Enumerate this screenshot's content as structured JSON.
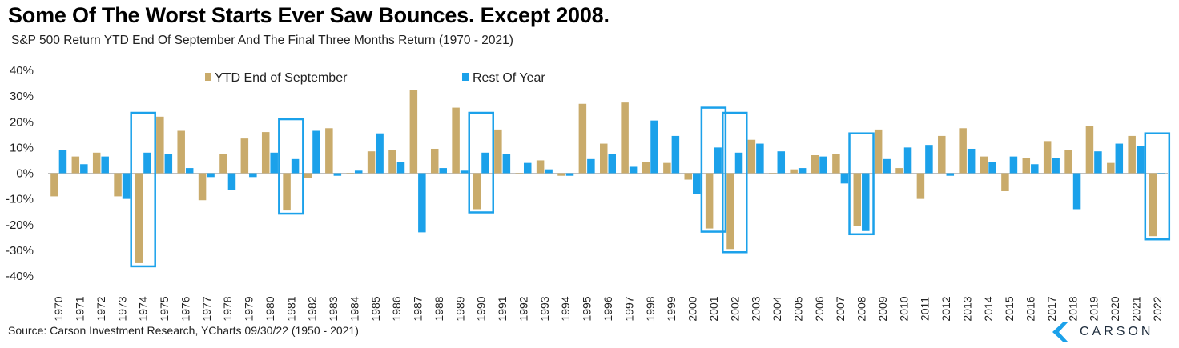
{
  "title": "Some Of The Worst Starts Ever Saw Bounces. Except 2008.",
  "subtitle": "S&P 500 Return YTD End Of September And The Final Three Months Return (1970 - 2021)",
  "source": "Source: Carson Investment Research, YCharts 09/30/22 (1950 - 2021)",
  "logo_text": "CARSON",
  "colors": {
    "ytd": "#c9ab6b",
    "rest": "#1ba1ea",
    "highlight": "#1ba1ea",
    "axis": "#bfbfbf"
  },
  "chart_data": {
    "type": "bar",
    "ylim": [
      -40,
      40
    ],
    "yticks": [
      "40%",
      "30%",
      "20%",
      "10%",
      "0%",
      "-10%",
      "-20%",
      "-30%",
      "-40%"
    ],
    "ytick_values": [
      40,
      30,
      20,
      10,
      0,
      -10,
      -20,
      -30,
      -40
    ],
    "categories": [
      "1970",
      "1971",
      "1972",
      "1973",
      "1974",
      "1975",
      "1976",
      "1977",
      "1978",
      "1979",
      "1980",
      "1981",
      "1982",
      "1983",
      "1984",
      "1985",
      "1986",
      "1987",
      "1988",
      "1989",
      "1990",
      "1991",
      "1992",
      "1993",
      "1994",
      "1995",
      "1996",
      "1997",
      "1998",
      "1999",
      "2000",
      "2001",
      "2002",
      "2003",
      "2004",
      "2005",
      "2006",
      "2007",
      "2008",
      "2009",
      "2010",
      "2011",
      "2012",
      "2013",
      "2014",
      "2015",
      "2016",
      "2017",
      "2018",
      "2019",
      "2020",
      "2021",
      "2022"
    ],
    "series": [
      {
        "name": "YTD End of September",
        "color_key": "ytd",
        "values": [
          -9,
          6.5,
          8,
          -9,
          -35,
          22,
          16.5,
          -10.5,
          7.5,
          13.5,
          16,
          -14.5,
          -2,
          17.5,
          0,
          8.5,
          9,
          32.5,
          9.5,
          25.5,
          -14,
          17,
          0,
          5,
          -1,
          27,
          11.5,
          27.5,
          4.5,
          4,
          -2.5,
          -21.5,
          -29.5,
          13,
          0,
          1.5,
          7,
          7.5,
          -20.5,
          17,
          2,
          -10,
          14.5,
          17.5,
          6.5,
          -7,
          6,
          12.5,
          9,
          18.5,
          4,
          14.5,
          -24.5
        ]
      },
      {
        "name": "Rest Of Year",
        "color_key": "rest",
        "values": [
          9,
          3.5,
          6.5,
          -10,
          8,
          7.5,
          2,
          -1.5,
          -6.5,
          -1.5,
          8,
          5.5,
          16.5,
          -1,
          1,
          15.5,
          4.5,
          -23,
          2,
          1,
          8,
          7.5,
          4,
          1.5,
          -1,
          5.5,
          7.5,
          2.5,
          20.5,
          14.5,
          -8,
          10,
          8,
          11.5,
          8.5,
          2,
          6.5,
          -4,
          -22.5,
          5.5,
          10,
          11,
          -1,
          9.5,
          4.5,
          6.5,
          3.5,
          6,
          -14,
          8.5,
          11.5,
          10.5,
          0
        ]
      }
    ],
    "highlighted_years": [
      "1974",
      "1981",
      "1990",
      "2001",
      "2002",
      "2008",
      "2022"
    ],
    "legend_placement": "top"
  }
}
